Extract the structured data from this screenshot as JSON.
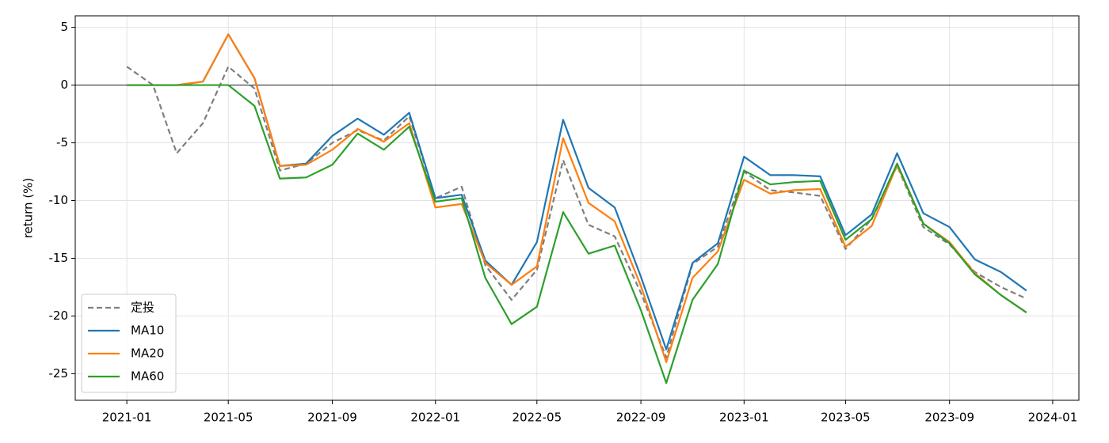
{
  "chart_data": {
    "type": "line",
    "ylabel": "return (%)",
    "x": [
      "2021-01",
      "2021-02",
      "2021-03",
      "2021-04",
      "2021-05",
      "2021-06",
      "2021-07",
      "2021-08",
      "2021-09",
      "2021-10",
      "2021-11",
      "2021-12",
      "2022-01",
      "2022-02",
      "2022-03",
      "2022-04",
      "2022-05",
      "2022-06",
      "2022-07",
      "2022-08",
      "2022-09",
      "2022-10",
      "2022-11",
      "2022-12",
      "2023-01",
      "2023-02",
      "2023-03",
      "2023-04",
      "2023-05",
      "2023-06",
      "2023-07",
      "2023-08",
      "2023-09",
      "2023-10",
      "2023-11",
      "2023-12"
    ],
    "series": [
      {
        "name": "定投",
        "color": "#7f7f7f",
        "dashed": true,
        "values": [
          1.6,
          0,
          -5.9,
          -3.3,
          1.6,
          -0.3,
          -7.4,
          -6.8,
          -5.0,
          -3.9,
          -4.8,
          -2.7,
          -9.8,
          -8.8,
          -15.6,
          -18.6,
          -16.0,
          -6.5,
          -12.1,
          -13.1,
          -18.0,
          -23.6,
          -15.5,
          -14.0,
          -7.5,
          -9.1,
          -9.3,
          -9.6,
          -14.2,
          -11.6,
          -7.0,
          -12.3,
          -13.8,
          -16.2,
          -17.5,
          -18.5
        ]
      },
      {
        "name": "MA10",
        "color": "#1f77b4",
        "values": [
          0,
          0,
          0,
          0.3,
          4.4,
          0.6,
          -7.0,
          -6.8,
          -4.4,
          -2.9,
          -4.3,
          -2.4,
          -9.8,
          -9.5,
          -15.2,
          -17.3,
          -13.6,
          -3.0,
          -8.9,
          -10.6,
          -16.6,
          -22.9,
          -15.4,
          -13.7,
          -6.2,
          -7.8,
          -7.8,
          -7.9,
          -13.0,
          -11.2,
          -5.9,
          -11.1,
          -12.3,
          -15.1,
          -16.2,
          -17.8
        ]
      },
      {
        "name": "MA20",
        "color": "#ff7f0e",
        "values": [
          0,
          0,
          0,
          0.3,
          4.4,
          0.6,
          -7.0,
          -6.9,
          -5.6,
          -3.8,
          -4.9,
          -3.3,
          -10.6,
          -10.3,
          -15.4,
          -17.3,
          -15.7,
          -4.6,
          -10.2,
          -11.8,
          -17.4,
          -24.0,
          -16.7,
          -14.4,
          -8.2,
          -9.4,
          -9.1,
          -9.0,
          -14.0,
          -12.2,
          -6.9,
          -12.0,
          -13.6,
          -16.3,
          -18.2,
          -19.7
        ]
      },
      {
        "name": "MA60",
        "color": "#2ca02c",
        "values": [
          0,
          0,
          0,
          0,
          0,
          -1.8,
          -8.1,
          -8.0,
          -6.9,
          -4.2,
          -5.6,
          -3.6,
          -10.1,
          -9.8,
          -16.7,
          -20.7,
          -19.2,
          -11.0,
          -14.6,
          -13.9,
          -19.5,
          -25.8,
          -18.6,
          -15.5,
          -7.4,
          -8.6,
          -8.4,
          -8.3,
          -13.4,
          -11.6,
          -6.8,
          -12.0,
          -13.7,
          -16.4,
          -18.2,
          -19.7
        ]
      }
    ],
    "xlim": [
      "2020-11",
      "2024-02"
    ],
    "xticks": [
      "2021-01",
      "2021-05",
      "2021-09",
      "2022-01",
      "2022-05",
      "2022-09",
      "2023-01",
      "2023-05",
      "2023-09",
      "2024-01"
    ],
    "ylim": [
      -27.3,
      6
    ],
    "yticks": [
      5,
      0,
      -5,
      -10,
      -15,
      -20,
      -25
    ],
    "hline": 0,
    "grid": true,
    "legend": "lower-left"
  }
}
